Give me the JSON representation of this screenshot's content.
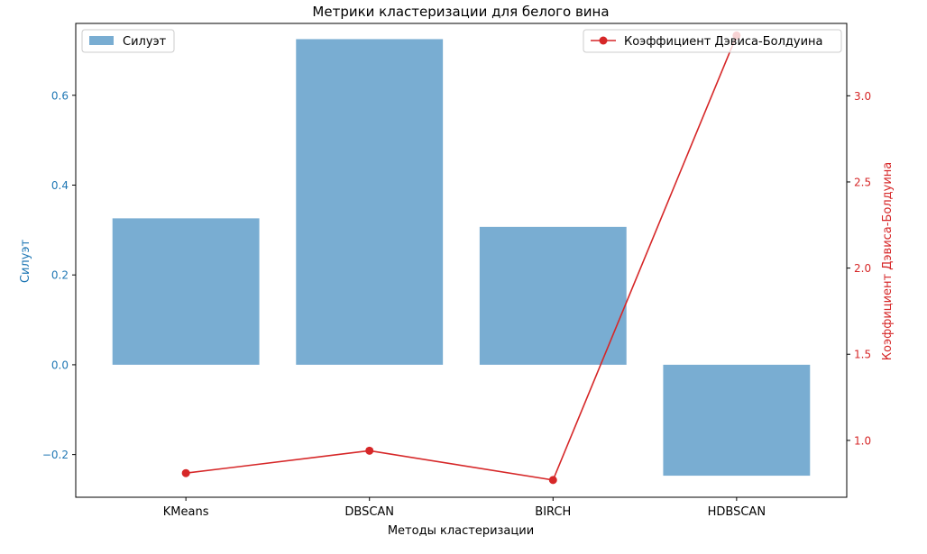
{
  "chart_data": {
    "type": "bar",
    "title": "Метрики кластеризации для белого вина",
    "xlabel": "Методы кластеризации",
    "categories": [
      "KMeans",
      "DBSCAN",
      "BIRCH",
      "HDBSCAN"
    ],
    "grid": false,
    "left_axis": {
      "label": "Силуэт",
      "color": "#1f77b4",
      "ylim": [
        -0.295,
        0.76
      ],
      "ticks": [
        -0.2,
        0.0,
        0.2,
        0.4,
        0.6
      ],
      "tick_labels": [
        "−0.2",
        "0.0",
        "0.2",
        "0.4",
        "0.6"
      ]
    },
    "right_axis": {
      "label": "Коэффициент Дэвиса-Болдуина",
      "color": "#d62728",
      "ylim": [
        0.67,
        3.42
      ],
      "ticks": [
        1.0,
        1.5,
        2.0,
        2.5,
        3.0
      ],
      "tick_labels": [
        "1.0",
        "1.5",
        "2.0",
        "2.5",
        "3.0"
      ]
    },
    "series": [
      {
        "name": "Силуэт",
        "kind": "bar",
        "axis": "left",
        "color": "#1f77b4",
        "opacity": 0.6,
        "values": [
          0.326,
          0.725,
          0.307,
          -0.247
        ]
      },
      {
        "name": "Коэффициент Дэвиса-Болдуина",
        "kind": "line",
        "axis": "right",
        "color": "#d62728",
        "marker": "circle",
        "values": [
          0.81,
          0.94,
          0.77,
          3.35
        ]
      }
    ],
    "legends": {
      "bars": {
        "placement": "top-left",
        "label": "Силуэт"
      },
      "line": {
        "placement": "top-right",
        "label": "Коэффициент Дэвиса-Болдуина"
      }
    }
  }
}
